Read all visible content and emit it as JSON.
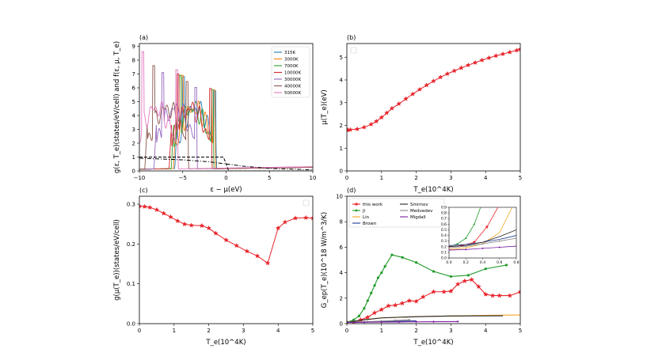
{
  "chart_data": [
    {
      "id": "a",
      "panel_label": "(a)",
      "type": "line",
      "xlabel": "ε − μ(eV)",
      "ylabel": "g(ε, T_e)(states/eV/cell) and f(ε, μ, T_e)",
      "xlim": [
        -10,
        10
      ],
      "ylim": [
        0,
        9.2
      ],
      "xticks": [
        -10,
        -5,
        0,
        5,
        10
      ],
      "yticks": [
        0,
        1,
        2,
        3,
        4,
        5,
        6,
        7,
        8,
        9
      ],
      "legend_position": "top-right",
      "series": [
        {
          "name": "315K",
          "color": "#1f77b4",
          "shift": -1.4,
          "peak": 6.8
        },
        {
          "name": "3000K",
          "color": "#ff7f0e",
          "shift": -1.5,
          "peak": 6.9
        },
        {
          "name": "7000K",
          "color": "#2ca02c",
          "shift": -1.7,
          "peak": 6.9
        },
        {
          "name": "10000K",
          "color": "#d62728",
          "shift": -1.9,
          "peak": 7.0
        },
        {
          "name": "30000K",
          "color": "#9467bd",
          "shift": -3.6,
          "peak": 7.1
        },
        {
          "name": "40000K",
          "color": "#8c564b",
          "shift": -4.6,
          "peak": 7.6
        },
        {
          "name": "50000K",
          "color": "#e377c2",
          "shift": -5.8,
          "peak": 8.6
        }
      ],
      "fermi_curves": [
        {
          "name": "f 315K",
          "style": "dashed",
          "x": [
            -10,
            -0.3,
            0,
            0.3,
            10
          ],
          "y": [
            1.0,
            1.0,
            0.5,
            0.0,
            0.0
          ]
        },
        {
          "name": "f high T",
          "style": "dashdot",
          "x": [
            -10,
            -5,
            -2,
            0,
            2,
            5,
            10
          ],
          "y": [
            0.92,
            0.8,
            0.66,
            0.5,
            0.34,
            0.18,
            0.08
          ]
        }
      ]
    },
    {
      "id": "b",
      "panel_label": "(b)",
      "type": "line",
      "xlabel": "T_e(10^4K)",
      "ylabel": "μ(T_e)(eV)",
      "xlim": [
        0,
        5
      ],
      "ylim": [
        0,
        5.6
      ],
      "xticks": [
        0,
        1,
        2,
        3,
        4,
        5
      ],
      "yticks": [
        0,
        1,
        2,
        3,
        4,
        5
      ],
      "series": [
        {
          "name": "μ",
          "color": "#e8242b",
          "x": [
            0,
            0.03,
            0.1,
            0.3,
            0.5,
            0.7,
            0.85,
            1.0,
            1.15,
            1.3,
            1.5,
            1.7,
            1.9,
            2.1,
            2.3,
            2.5,
            2.7,
            2.9,
            3.1,
            3.3,
            3.5,
            3.7,
            3.9,
            4.1,
            4.3,
            4.5,
            4.7,
            4.9,
            5.0
          ],
          "y": [
            1.8,
            1.8,
            1.81,
            1.84,
            1.92,
            2.05,
            2.18,
            2.35,
            2.55,
            2.75,
            2.95,
            3.17,
            3.38,
            3.58,
            3.77,
            3.95,
            4.12,
            4.27,
            4.4,
            4.53,
            4.65,
            4.76,
            4.87,
            4.97,
            5.06,
            5.14,
            5.22,
            5.3,
            5.35
          ]
        }
      ]
    },
    {
      "id": "c",
      "panel_label": "(c)",
      "type": "line",
      "xlabel": "T_e(10^4K)",
      "ylabel": "g(μ(T_e))(states/eV/cell)",
      "xlim": [
        0,
        5
      ],
      "ylim": [
        0,
        0.32
      ],
      "xticks": [
        0,
        1,
        2,
        3,
        4,
        5
      ],
      "yticks": [
        0.0,
        0.1,
        0.2,
        0.3
      ],
      "series": [
        {
          "name": "g(μ)",
          "color": "#e8242b",
          "x": [
            0,
            0.15,
            0.3,
            0.5,
            0.7,
            0.9,
            1.1,
            1.3,
            1.5,
            1.8,
            2.0,
            2.2,
            2.5,
            2.8,
            3.1,
            3.4,
            3.7,
            4.0,
            4.2,
            4.5,
            4.8,
            5.0
          ],
          "y": [
            0.295,
            0.294,
            0.292,
            0.286,
            0.277,
            0.268,
            0.258,
            0.25,
            0.247,
            0.246,
            0.24,
            0.227,
            0.21,
            0.196,
            0.182,
            0.17,
            0.152,
            0.24,
            0.255,
            0.265,
            0.266,
            0.265
          ]
        }
      ]
    },
    {
      "id": "d",
      "panel_label": "(d)",
      "type": "line",
      "xlabel": "T_e(10^4K)",
      "ylabel": "G_ep(T_e)(10^18 W/m^3/K)",
      "xlim": [
        0,
        5
      ],
      "ylim": [
        0,
        10
      ],
      "xticks": [
        0,
        1,
        2,
        3,
        4,
        5
      ],
      "yticks": [
        0,
        2,
        4,
        6,
        8,
        10
      ],
      "legend": [
        "this work",
        "Ji",
        "Lin",
        "Brown",
        "Smirnov",
        "Medvedev",
        "Migdall"
      ],
      "series": [
        {
          "name": "this work",
          "color": "#e8242b",
          "marker": "star",
          "x": [
            0,
            0.2,
            0.4,
            0.6,
            0.8,
            1.0,
            1.2,
            1.4,
            1.6,
            1.8,
            2.0,
            2.2,
            2.5,
            2.8,
            3.0,
            3.2,
            3.4,
            3.6,
            3.8,
            4.0,
            4.2,
            4.4,
            4.7,
            5.0
          ],
          "y": [
            0.1,
            0.15,
            0.3,
            0.5,
            0.85,
            1.1,
            1.4,
            1.45,
            1.6,
            1.8,
            1.75,
            2.1,
            2.5,
            2.5,
            2.55,
            3.1,
            3.35,
            3.45,
            2.9,
            2.3,
            2.2,
            2.2,
            2.2,
            2.5
          ]
        },
        {
          "name": "Ji",
          "color": "#1f9a28",
          "marker": "circle",
          "x": [
            0,
            0.2,
            0.35,
            0.5,
            0.6,
            0.7,
            0.8,
            0.9,
            1.0,
            1.1,
            1.3,
            1.6,
            2.0,
            2.5,
            3.0,
            3.5,
            4.0,
            4.6
          ],
          "y": [
            0.1,
            0.3,
            0.6,
            1.2,
            1.8,
            2.4,
            3.0,
            3.6,
            4.0,
            4.5,
            5.4,
            5.2,
            4.8,
            4.1,
            3.7,
            3.8,
            4.3,
            4.6
          ]
        },
        {
          "name": "Lin",
          "color": "#f5a623",
          "x": [
            0,
            0.3,
            0.6,
            1.0,
            1.5,
            2.0,
            3.0,
            4.0,
            5.0
          ],
          "y": [
            0.1,
            0.2,
            0.35,
            0.45,
            0.5,
            0.55,
            0.6,
            0.65,
            0.68
          ]
        },
        {
          "name": "Brown",
          "color": "#1f3a93",
          "x": [
            0,
            0.5,
            1.0,
            1.5,
            2.0
          ],
          "y": [
            0.1,
            0.12,
            0.15,
            0.18,
            0.22
          ]
        },
        {
          "name": "Smirnov",
          "color": "#222222",
          "x": [
            0,
            0.5,
            1.0,
            2.0,
            3.0,
            4.5
          ],
          "y": [
            0.1,
            0.3,
            0.45,
            0.55,
            0.6,
            0.62
          ]
        },
        {
          "name": "Medvedev",
          "color": "#888888",
          "x": [
            0,
            0.3,
            0.6,
            1.0,
            1.4,
            1.8
          ],
          "y": [
            0.1,
            0.12,
            0.15,
            0.2,
            0.25,
            0.3
          ]
        },
        {
          "name": "Migdall",
          "color": "#7b1fa2",
          "x": [
            0,
            0.5,
            1.0,
            1.5,
            2.0,
            2.5,
            3.2
          ],
          "y": [
            0.1,
            0.11,
            0.12,
            0.13,
            0.14,
            0.15,
            0.16
          ]
        }
      ],
      "inset": {
        "xlim": [
          0,
          0.8
        ],
        "ylim": [
          0,
          0.9
        ],
        "xticks": [
          0.0,
          0.2,
          0.4,
          0.6,
          0.8
        ],
        "yticks": [
          0.0,
          0.1,
          0.2,
          0.3,
          0.4,
          0.5,
          0.6,
          0.7,
          0.8,
          0.9
        ],
        "xticklabels": [
          "0.0",
          "0.2",
          "0.4",
          "0.6",
          "0.8"
        ],
        "yticklabels": [
          "0.0",
          "0.1",
          "0.2",
          "0.3",
          "0.4",
          "0.5",
          "0.6",
          "0.7",
          "0.8",
          "0.9"
        ]
      }
    }
  ]
}
